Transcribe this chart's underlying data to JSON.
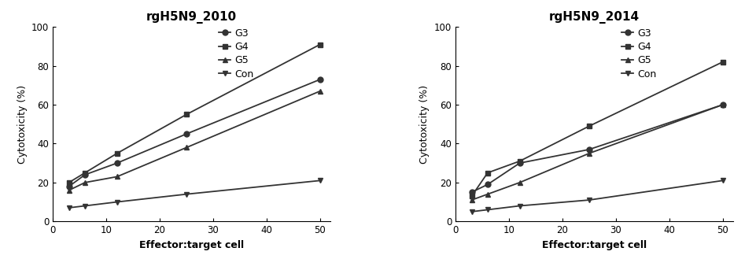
{
  "x": [
    3,
    6,
    12,
    25,
    50
  ],
  "plot1": {
    "title": "rgH5N9_2010",
    "G3": [
      18,
      24,
      30,
      45,
      73
    ],
    "G4": [
      20,
      25,
      35,
      55,
      91
    ],
    "G5": [
      16,
      20,
      23,
      38,
      67
    ],
    "Con": [
      7,
      8,
      10,
      14,
      21
    ]
  },
  "plot2": {
    "title": "rgH5N9_2014",
    "G3": [
      15,
      19,
      30,
      37,
      60
    ],
    "G4": [
      13,
      25,
      31,
      49,
      82
    ],
    "G5": [
      11,
      14,
      20,
      35,
      60
    ],
    "Con": [
      5,
      6,
      8,
      11,
      21
    ]
  },
  "xlabel": "Effector:target cell",
  "ylabel": "Cytotoxicity (%)",
  "ylim": [
    0,
    100
  ],
  "xlim": [
    0,
    52
  ],
  "xticks": [
    0,
    10,
    20,
    30,
    40,
    50
  ],
  "yticks": [
    0,
    20,
    40,
    60,
    80,
    100
  ],
  "legend_labels": [
    "G3",
    "G4",
    "G5",
    "Con"
  ],
  "markers": [
    "o",
    "s",
    "^",
    "v"
  ],
  "color": "#333333",
  "line_width": 1.3,
  "marker_size": 5,
  "title_fontsize": 11,
  "label_fontsize": 9,
  "tick_fontsize": 8.5,
  "legend_fontsize": 9
}
